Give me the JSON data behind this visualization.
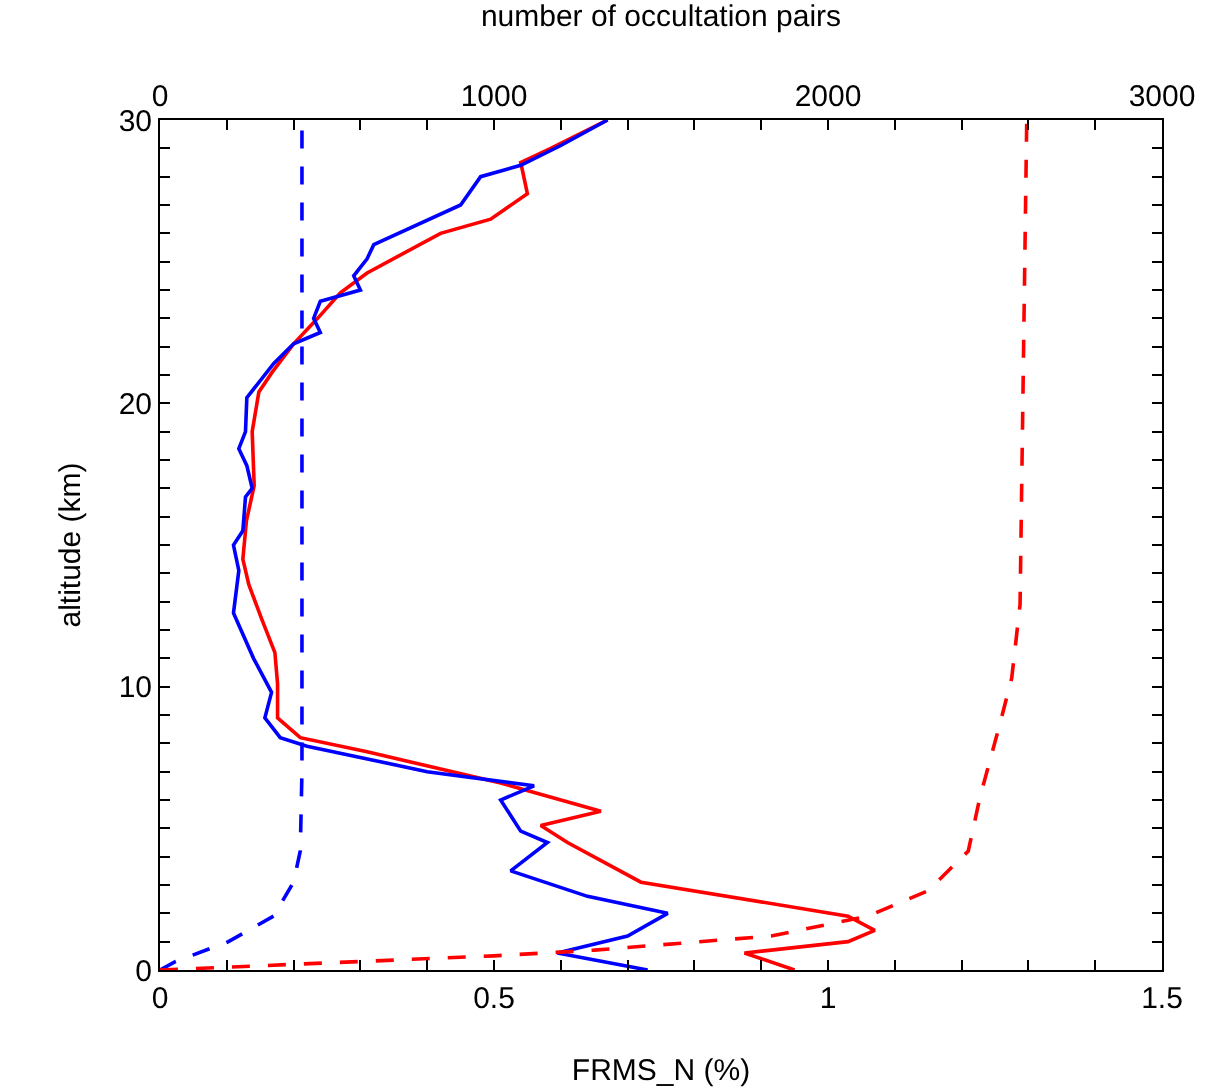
{
  "chart_data": {
    "type": "line",
    "xlabel": "FRMS_N (%)",
    "x2label": "number of occultation pairs",
    "ylabel": "altitude (km)",
    "xlim": [
      0,
      1.5
    ],
    "xticks": [
      0,
      {
        "value": 0.1,
        "label": null
      },
      {
        "value": 0.2,
        "label": null
      },
      {
        "value": 0.3,
        "label": null
      },
      {
        "value": 0.4,
        "label": null
      },
      0.5,
      {
        "value": 0.6,
        "label": null
      },
      {
        "value": 0.7,
        "label": null
      },
      {
        "value": 0.8,
        "label": null
      },
      {
        "value": 0.9,
        "label": null
      },
      1,
      {
        "value": 1.1,
        "label": null
      },
      {
        "value": 1.2,
        "label": null
      },
      {
        "value": 1.3,
        "label": null
      },
      {
        "value": 1.4,
        "label": null
      },
      1.5
    ],
    "x2lim": [
      0,
      3000
    ],
    "x2ticks": [
      0,
      {
        "value": 200,
        "label": null
      },
      {
        "value": 400,
        "label": null
      },
      {
        "value": 600,
        "label": null
      },
      {
        "value": 800,
        "label": null
      },
      1000,
      {
        "value": 1200,
        "label": null
      },
      {
        "value": 1400,
        "label": null
      },
      {
        "value": 1600,
        "label": null
      },
      {
        "value": 1800,
        "label": null
      },
      2000,
      {
        "value": 2200,
        "label": null
      },
      {
        "value": 2400,
        "label": null
      },
      {
        "value": 2600,
        "label": null
      },
      {
        "value": 2800,
        "label": null
      },
      3000
    ],
    "ylim": [
      0,
      30
    ],
    "yticks": [
      0,
      {
        "value": 1,
        "label": null
      },
      {
        "value": 2,
        "label": null
      },
      {
        "value": 3,
        "label": null
      },
      {
        "value": 4,
        "label": null
      },
      {
        "value": 5,
        "label": null
      },
      {
        "value": 6,
        "label": null
      },
      {
        "value": 7,
        "label": null
      },
      {
        "value": 8,
        "label": null
      },
      {
        "value": 9,
        "label": null
      },
      10,
      {
        "value": 11,
        "label": null
      },
      {
        "value": 12,
        "label": null
      },
      {
        "value": 13,
        "label": null
      },
      {
        "value": 14,
        "label": null
      },
      {
        "value": 15,
        "label": null
      },
      {
        "value": 16,
        "label": null
      },
      {
        "value": 17,
        "label": null
      },
      {
        "value": 18,
        "label": null
      },
      {
        "value": 19,
        "label": null
      },
      20,
      {
        "value": 21,
        "label": null
      },
      {
        "value": 22,
        "label": null
      },
      {
        "value": 23,
        "label": null
      },
      {
        "value": 24,
        "label": null
      },
      {
        "value": 25,
        "label": null
      },
      {
        "value": 26,
        "label": null
      },
      {
        "value": 27,
        "label": null
      },
      {
        "value": 28,
        "label": null
      },
      {
        "value": 29,
        "label": null
      },
      30
    ],
    "grid": false,
    "marker": "none",
    "series": [
      {
        "color": "#ff0000",
        "line_style": "solid",
        "x": [
          0.95,
          0.875,
          1.03,
          1.07,
          1.03,
          0.72,
          0.61,
          0.57,
          0.66,
          0.51,
          0.31,
          0.21,
          0.176,
          0.176,
          0.172,
          0.152,
          0.133,
          0.124,
          0.13,
          0.128,
          0.141,
          0.138,
          0.148,
          0.168,
          0.2,
          0.236,
          0.27,
          0.31,
          0.42,
          0.495,
          0.55,
          0.54,
          0.585,
          0.67
        ],
        "values": [
          0,
          0.6,
          1.0,
          1.4,
          1.9,
          3.1,
          4.5,
          5.1,
          5.6,
          6.6,
          7.7,
          8.2,
          8.9,
          10.1,
          11.2,
          12.4,
          13.6,
          14.5,
          16.0,
          15.7,
          17.1,
          19.0,
          20.4,
          21.1,
          22.1,
          23.0,
          23.9,
          24.6,
          26.0,
          26.5,
          27.4,
          28.5,
          29.0,
          30
        ]
      },
      {
        "color": "#0000ff",
        "line_style": "solid",
        "x": [
          0.73,
          0.595,
          0.7,
          0.76,
          0.64,
          0.525,
          0.58,
          0.54,
          0.51,
          0.56,
          0.4,
          0.22,
          0.18,
          0.157,
          0.167,
          0.14,
          0.11,
          0.118,
          0.11,
          0.124,
          0.128,
          0.138,
          0.13,
          0.118,
          0.128,
          0.13,
          0.17,
          0.2,
          0.24,
          0.23,
          0.24,
          0.3,
          0.29,
          0.31,
          0.32,
          0.45,
          0.48,
          0.54,
          0.6,
          0.67
        ],
        "values": [
          0,
          0.6,
          1.2,
          2.0,
          2.6,
          3.5,
          4.5,
          4.9,
          6.0,
          6.5,
          7.0,
          7.9,
          8.2,
          8.9,
          9.8,
          11.0,
          12.6,
          14.1,
          15.0,
          15.5,
          16.7,
          17.0,
          17.8,
          18.4,
          19.0,
          20.2,
          21.4,
          22.1,
          22.5,
          23.0,
          23.6,
          24.0,
          24.5,
          25.1,
          25.6,
          27.0,
          28.0,
          28.4,
          29.1,
          30
        ]
      },
      {
        "color": "#0000ff",
        "line_style": "dashed",
        "axis": "x2",
        "x": [
          0,
          47,
          205,
          340,
          400,
          420,
          425,
          425
        ],
        "values": [
          0,
          0.3,
          1.0,
          1.9,
          3.1,
          4.2,
          7,
          30
        ]
      },
      {
        "color": "#ff0000",
        "line_style": "dashed",
        "axis": "x2",
        "x": [
          0,
          1000,
          1300,
          1830,
          2120,
          2300,
          2420,
          2455,
          2515,
          2550,
          2575,
          2595
        ],
        "values": [
          0,
          0.5,
          0.7,
          1.2,
          1.9,
          2.8,
          4.2,
          6.1,
          8.7,
          10.3,
          12.9,
          30
        ]
      }
    ]
  }
}
